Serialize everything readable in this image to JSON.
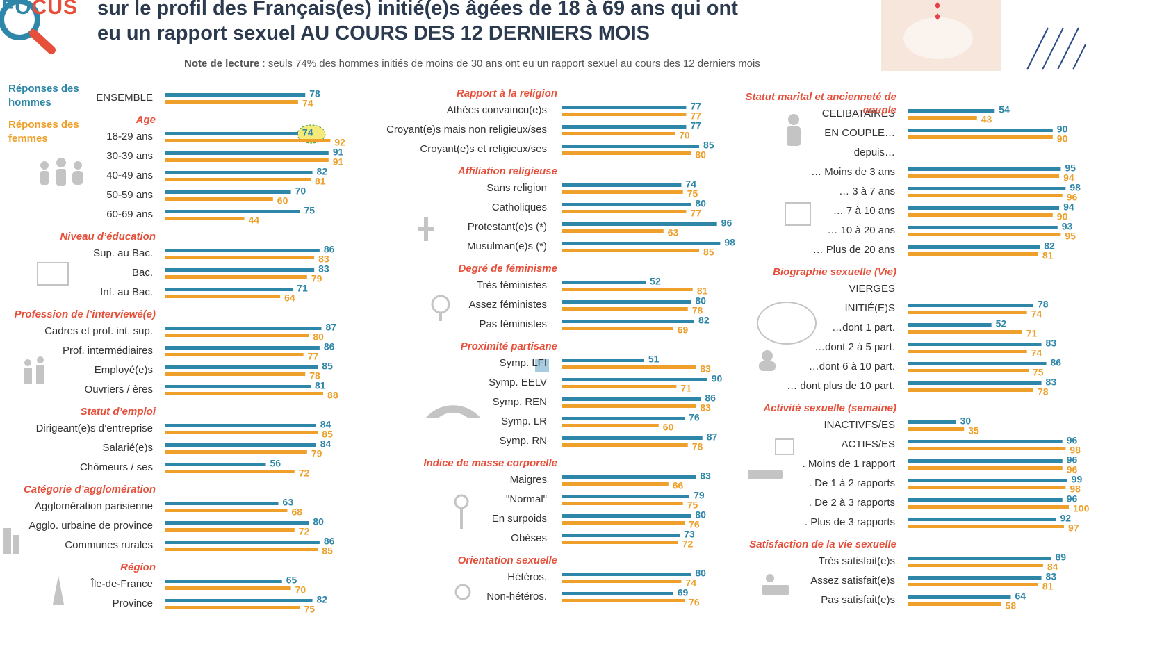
{
  "header": {
    "logo_a": "FO",
    "logo_b": "CUS",
    "title_lines": [
      "sur le profil des Français(es) initié(e)s âgées de 18 à 69 ans qui ont",
      "eu un rapport sexuel AU COURS DES 12 DERNIERS MOIS"
    ],
    "note_label": "Note de lecture",
    "note_text": ": seuls 74% des hommes initiés de moins de 30 ans ont eu un rapport sexuel au cours des 12 derniers mois"
  },
  "chart_data": [
    {
      "type": "bar",
      "categories": [
        "ENSEMBLE"
      ],
      "xlim": [
        0,
        100
      ],
      "series": [
        {
          "name": "Réponses des hommes",
          "color": "#2e86a8",
          "values": [
            78
          ]
        },
        {
          "name": "Réponses des femmes",
          "color": "#eea02b",
          "values": [
            74
          ]
        }
      ]
    },
    {
      "type": "bar",
      "title": "Age",
      "categories": [
        "18-29 ans",
        "30-39 ans",
        "40-49 ans",
        "50-59 ans",
        "60-69 ans"
      ],
      "series": [
        {
          "values": [
            74,
            91,
            82,
            70,
            75
          ]
        },
        {
          "values": [
            92,
            91,
            81,
            60,
            44
          ]
        }
      ]
    },
    {
      "type": "bar",
      "title": "Niveau d’éducation",
      "categories": [
        "Sup. au Bac.",
        "Bac.",
        "Inf. au Bac."
      ],
      "series": [
        {
          "values": [
            86,
            83,
            71
          ]
        },
        {
          "values": [
            83,
            79,
            64
          ]
        }
      ]
    },
    {
      "type": "bar",
      "title": "Profession de l’interviewé(e)",
      "categories": [
        "Cadres et prof. int. sup.",
        "Prof. intermédiaires",
        "Employé(e)s",
        "Ouvriers / ères"
      ],
      "series": [
        {
          "values": [
            87,
            86,
            85,
            81
          ]
        },
        {
          "values": [
            80,
            77,
            78,
            88
          ]
        }
      ]
    },
    {
      "type": "bar",
      "title": "Statut d’emploi",
      "categories": [
        "Dirigeant(e)s d’entreprise",
        "Salarié(e)s",
        "Chômeurs / ses"
      ],
      "series": [
        {
          "values": [
            84,
            84,
            56
          ]
        },
        {
          "values": [
            85,
            79,
            72
          ]
        }
      ]
    },
    {
      "type": "bar",
      "title": "Catégorie d’agglomération",
      "categories": [
        "Agglomération parisienne",
        "Agglo. urbaine de province",
        "Communes rurales"
      ],
      "series": [
        {
          "values": [
            63,
            80,
            86
          ]
        },
        {
          "values": [
            68,
            72,
            85
          ]
        }
      ]
    },
    {
      "type": "bar",
      "title": "Région",
      "categories": [
        "Île-de-France",
        "Province"
      ],
      "series": [
        {
          "values": [
            65,
            82
          ]
        },
        {
          "values": [
            70,
            75
          ]
        }
      ]
    },
    {
      "type": "bar",
      "title": "Rapport à la religion",
      "categories": [
        "Athées convaincu(e)s",
        "Croyant(e)s mais non religieux/ses",
        "Croyant(e)s et religieux/ses"
      ],
      "series": [
        {
          "values": [
            77,
            77,
            85
          ]
        },
        {
          "values": [
            77,
            70,
            80
          ]
        }
      ]
    },
    {
      "type": "bar",
      "title": "Affiliation religieuse",
      "categories": [
        "Sans religion",
        "Catholiques",
        "Protestant(e)s (*)",
        "Musulman(e)s (*)"
      ],
      "series": [
        {
          "values": [
            74,
            80,
            96,
            98
          ]
        },
        {
          "values": [
            75,
            77,
            63,
            85
          ]
        }
      ]
    },
    {
      "type": "bar",
      "title": "Degré de féminisme",
      "categories": [
        "Très féministes",
        "Assez féministes",
        "Pas féministes"
      ],
      "series": [
        {
          "values": [
            52,
            80,
            82
          ]
        },
        {
          "values": [
            81,
            78,
            69
          ]
        }
      ]
    },
    {
      "type": "bar",
      "title": "Proximité partisane",
      "categories": [
        "Symp. LFI",
        "Symp. EELV",
        "Symp. REN",
        "Symp. LR",
        "Symp. RN"
      ],
      "series": [
        {
          "values": [
            51,
            90,
            86,
            76,
            87
          ]
        },
        {
          "values": [
            83,
            71,
            83,
            60,
            78
          ]
        }
      ]
    },
    {
      "type": "bar",
      "title": "Indice de masse corporelle",
      "categories": [
        "Maigres",
        "\"Normal\"",
        "En surpoids",
        "Obèses"
      ],
      "series": [
        {
          "values": [
            83,
            79,
            80,
            73
          ]
        },
        {
          "values": [
            66,
            75,
            76,
            72
          ]
        }
      ]
    },
    {
      "type": "bar",
      "title": "Orientation sexuelle",
      "categories": [
        "Hétéros.",
        "Non-hétéros."
      ],
      "series": [
        {
          "values": [
            80,
            69
          ]
        },
        {
          "values": [
            74,
            76
          ]
        }
      ]
    },
    {
      "type": "bar",
      "title": "Statut marital et ancienneté de couple",
      "categories": [
        "CELIBATAIRES",
        "EN COUPLE…",
        "depuis…",
        "… Moins de 3 ans",
        "… 3 à 7 ans",
        "…  7 à 10 ans",
        "… 10 à 20 ans",
        "… Plus de 20 ans"
      ],
      "series": [
        {
          "values": [
            54,
            90,
            null,
            95,
            98,
            94,
            93,
            82
          ]
        },
        {
          "values": [
            43,
            90,
            null,
            94,
            96,
            90,
            95,
            81
          ]
        }
      ]
    },
    {
      "type": "bar",
      "title": "Biographie sexuelle  (Vie)",
      "categories": [
        "VIERGES",
        "INITIÉ(E)S",
        "…dont 1 part.",
        "…dont 2 à 5 part.",
        "…dont 6 à 10 part.",
        "… dont plus de 10 part."
      ],
      "series": [
        {
          "values": [
            null,
            78,
            52,
            83,
            86,
            83
          ]
        },
        {
          "values": [
            null,
            74,
            71,
            74,
            75,
            78
          ]
        }
      ]
    },
    {
      "type": "bar",
      "title": "Activité sexuelle (semaine)",
      "categories": [
        "INACTIVFS/ES",
        "ACTIFS/ES",
        ". Moins de 1 rapport",
        ". De 1 à 2 rapports",
        ". De 2 à 3 rapports",
        ". Plus de 3 rapports"
      ],
      "series": [
        {
          "values": [
            30,
            96,
            96,
            99,
            96,
            92
          ]
        },
        {
          "values": [
            35,
            98,
            96,
            98,
            100,
            97
          ]
        }
      ]
    },
    {
      "type": "bar",
      "title": "Satisfaction de la vie sexuelle",
      "categories": [
        "Très satisfait(e)s",
        "Assez satisfait(e)s",
        "Pas satisfait(e)s"
      ],
      "series": [
        {
          "values": [
            89,
            83,
            64
          ]
        },
        {
          "values": [
            84,
            81,
            58
          ]
        }
      ]
    }
  ]
}
